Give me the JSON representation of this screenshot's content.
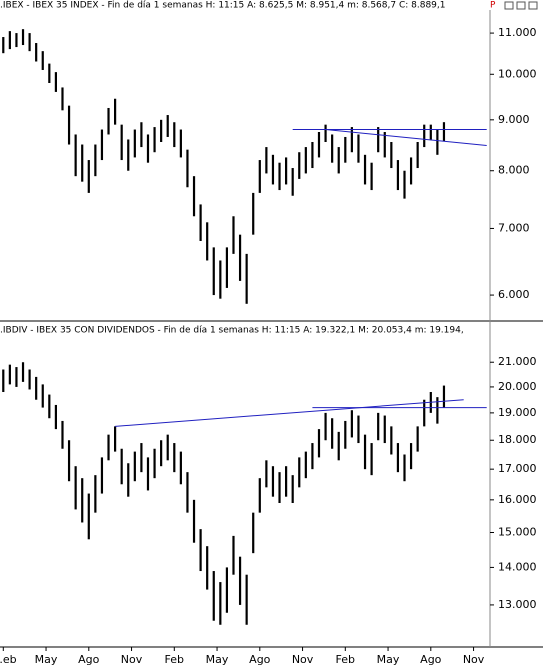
{
  "chart_data": [
    {
      "type": "ohlc",
      "title": ".IBEX - IBEX 35 INDEX - Fin de día 1 semanas  H: 11:15  A: 8.625,5  M: 8.951,4  m: 8.568,7  C: 8.889,1",
      "flag": "P",
      "log_scale": true,
      "color": "#000000",
      "xlim": [
        -1,
        148
      ],
      "ylim": [
        5690,
        11550
      ],
      "yticks": [
        {
          "value": 11000,
          "label": "11.000"
        },
        {
          "value": 10000,
          "label": "10.000"
        },
        {
          "value": 9000,
          "label": "9.000"
        },
        {
          "value": 8000,
          "label": "8.000"
        },
        {
          "value": 7000,
          "label": "7.000"
        },
        {
          "value": 6000,
          "label": "6.000"
        }
      ],
      "x": [
        0,
        2,
        4,
        6,
        8,
        10,
        12,
        14,
        16,
        18,
        20,
        22,
        24,
        26,
        28,
        30,
        32,
        34,
        36,
        38,
        40,
        42,
        44,
        46,
        48,
        50,
        52,
        54,
        56,
        58,
        60,
        62,
        64,
        66,
        68,
        70,
        72,
        74,
        76,
        78,
        80,
        82,
        84,
        86,
        88,
        90,
        92,
        94,
        96,
        98,
        100,
        102,
        104,
        106,
        108,
        110,
        112,
        114,
        116,
        118,
        120,
        122,
        124,
        126,
        128,
        130,
        132,
        134
      ],
      "high": [
        10900,
        11050,
        11000,
        11100,
        11000,
        10750,
        10550,
        10250,
        10050,
        9700,
        9300,
        8700,
        8500,
        8200,
        8500,
        8800,
        9250,
        9450,
        8900,
        8600,
        8800,
        8950,
        8700,
        8850,
        9000,
        9100,
        8950,
        8800,
        8400,
        7900,
        7400,
        7100,
        6700,
        6500,
        6700,
        7200,
        6900,
        6600,
        7600,
        8200,
        8450,
        8300,
        8150,
        8250,
        8050,
        8350,
        8450,
        8550,
        8750,
        8900,
        8700,
        8450,
        8650,
        8850,
        8700,
        8300,
        8150,
        8850,
        8750,
        8550,
        8200,
        8000,
        8250,
        8550,
        8900,
        8900,
        8800,
        8951
      ],
      "low": [
        10500,
        10600,
        10650,
        10700,
        10550,
        10300,
        10100,
        9800,
        9600,
        9200,
        8500,
        7900,
        7800,
        7600,
        7900,
        8200,
        8700,
        8900,
        8200,
        8000,
        8250,
        8450,
        8150,
        8350,
        8550,
        8650,
        8450,
        8250,
        7700,
        7200,
        6800,
        6500,
        6000,
        5950,
        6100,
        6600,
        6200,
        5880,
        6900,
        7600,
        7950,
        7750,
        7650,
        7750,
        7550,
        7850,
        7950,
        8050,
        8250,
        8550,
        8150,
        7950,
        8150,
        8350,
        8150,
        7750,
        7650,
        8350,
        8250,
        8050,
        7650,
        7500,
        7750,
        8050,
        8450,
        8600,
        8300,
        8569
      ],
      "lines_color": "#2020c0",
      "trendlines": [
        {
          "x": [
            88,
            147
          ],
          "y": [
            8800,
            8800
          ]
        },
        {
          "x": [
            98,
            147
          ],
          "y": [
            8800,
            8480
          ]
        }
      ]
    },
    {
      "type": "ohlc",
      "title": ".IBDIV - IBEX 35 CON DIVIDENDOS - Fin de día 1 semanas  H: 11:15  A: 19.322,1  M: 20.053,4  m: 19.194,",
      "log_scale": true,
      "color": "#000000",
      "xlim": [
        -1,
        148
      ],
      "ylim": [
        12010,
        22030
      ],
      "xticks": [
        {
          "value": 0,
          "label": ".eb"
        },
        {
          "value": 13,
          "label": "May"
        },
        {
          "value": 26,
          "label": "Ago"
        },
        {
          "value": 39,
          "label": "Nov"
        },
        {
          "value": 52,
          "label": "Feb"
        },
        {
          "value": 65,
          "label": "May"
        },
        {
          "value": 78,
          "label": "Ago"
        },
        {
          "value": 91,
          "label": "Nov"
        },
        {
          "value": 104,
          "label": "Feb"
        },
        {
          "value": 117,
          "label": "May"
        },
        {
          "value": 130,
          "label": "Ago"
        },
        {
          "value": 143,
          "label": "Nov"
        }
      ],
      "yticks": [
        {
          "value": 21000,
          "label": "21.000"
        },
        {
          "value": 20000,
          "label": "20.000"
        },
        {
          "value": 19000,
          "label": "19.000"
        },
        {
          "value": 18000,
          "label": "18.000"
        },
        {
          "value": 17000,
          "label": "17.000"
        },
        {
          "value": 16000,
          "label": "16.000"
        },
        {
          "value": 15000,
          "label": "15.000"
        },
        {
          "value": 14000,
          "label": "14.000"
        },
        {
          "value": 13000,
          "label": "13.000"
        }
      ],
      "x": [
        0,
        2,
        4,
        6,
        8,
        10,
        12,
        14,
        16,
        18,
        20,
        22,
        24,
        26,
        28,
        30,
        32,
        34,
        36,
        38,
        40,
        42,
        44,
        46,
        48,
        50,
        52,
        54,
        56,
        58,
        60,
        62,
        64,
        66,
        68,
        70,
        72,
        74,
        76,
        78,
        80,
        82,
        84,
        86,
        88,
        90,
        92,
        94,
        96,
        98,
        100,
        102,
        104,
        106,
        108,
        110,
        112,
        114,
        116,
        118,
        120,
        122,
        124,
        126,
        128,
        130,
        132,
        134
      ],
      "high": [
        20700,
        20900,
        20800,
        21000,
        20700,
        20400,
        20100,
        19700,
        19300,
        18700,
        18000,
        17100,
        16700,
        16200,
        16800,
        17400,
        18200,
        18500,
        17700,
        17200,
        17600,
        17900,
        17400,
        17700,
        18000,
        18200,
        17900,
        17600,
        16900,
        16000,
        15100,
        14600,
        13900,
        13600,
        14000,
        14900,
        14300,
        13800,
        15600,
        16700,
        17300,
        17100,
        16900,
        17100,
        16800,
        17400,
        17600,
        17900,
        18400,
        19000,
        18800,
        18300,
        18700,
        19100,
        18900,
        18200,
        17900,
        19000,
        18900,
        18500,
        17900,
        17500,
        17900,
        18500,
        19500,
        19800,
        19600,
        20053
      ],
      "low": [
        19800,
        20100,
        20000,
        20200,
        19900,
        19500,
        19200,
        18800,
        18400,
        17700,
        16600,
        15700,
        15300,
        14800,
        15600,
        16200,
        17300,
        17600,
        16500,
        16100,
        16600,
        16900,
        16300,
        16700,
        17100,
        17300,
        16900,
        16500,
        15600,
        14700,
        13900,
        13400,
        12600,
        12500,
        12800,
        13800,
        13000,
        12500,
        14400,
        15600,
        16400,
        16100,
        15900,
        16100,
        15900,
        16400,
        16700,
        17000,
        17400,
        18000,
        17700,
        17300,
        17700,
        18100,
        17900,
        17000,
        16800,
        18000,
        17900,
        17500,
        16900,
        16600,
        17000,
        17600,
        18500,
        19000,
        18600,
        19194
      ],
      "lines_color": "#2020c0",
      "trendlines": [
        {
          "x": [
            34,
            140
          ],
          "y": [
            18500,
            19500
          ]
        },
        {
          "x": [
            94,
            147
          ],
          "y": [
            19200,
            19200
          ]
        }
      ]
    }
  ]
}
